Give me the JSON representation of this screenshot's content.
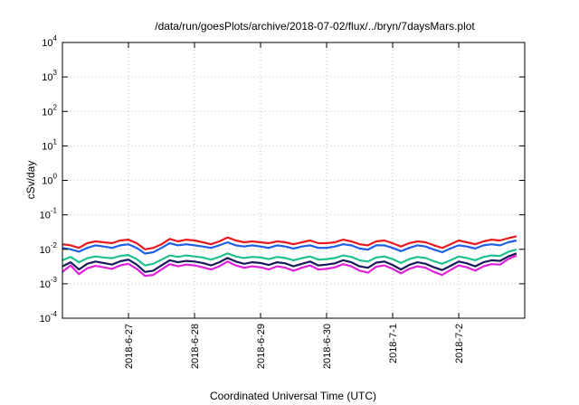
{
  "chart_data": {
    "type": "line",
    "title": "/data/run/goesPlots/archive/2018-07-02/flux/../bryn/7daysMars.plot",
    "xlabel": "Coordinated Universal Time (UTC)",
    "ylabel": "cSv/day",
    "yscale": "log",
    "ylim": [
      0.0001,
      10000
    ],
    "y_ticks": [
      {
        "base": "10",
        "exp": "-4"
      },
      {
        "base": "10",
        "exp": "-3"
      },
      {
        "base": "10",
        "exp": "-2"
      },
      {
        "base": "10",
        "exp": "-1"
      },
      {
        "base": "10",
        "exp": "0"
      },
      {
        "base": "10",
        "exp": "1"
      },
      {
        "base": "10",
        "exp": "2"
      },
      {
        "base": "10",
        "exp": "3"
      },
      {
        "base": "10",
        "exp": "4"
      }
    ],
    "xlim": [
      "2018-06-26 00:00",
      "2018-07-02 23:59"
    ],
    "x_ticks": [
      "2018-6-27",
      "2018-6-28",
      "2018-6-29",
      "2018-6-30",
      "2018-7-1",
      "2018-7-2"
    ],
    "grid": true,
    "x": [
      "2018-06-26 00:00",
      "2018-06-26 03:00",
      "2018-06-26 06:00",
      "2018-06-26 09:00",
      "2018-06-26 12:00",
      "2018-06-26 15:00",
      "2018-06-26 18:00",
      "2018-06-26 21:00",
      "2018-06-27 00:00",
      "2018-06-27 03:00",
      "2018-06-27 06:00",
      "2018-06-27 09:00",
      "2018-06-27 12:00",
      "2018-06-27 15:00",
      "2018-06-27 18:00",
      "2018-06-27 21:00",
      "2018-06-28 00:00",
      "2018-06-28 03:00",
      "2018-06-28 06:00",
      "2018-06-28 09:00",
      "2018-06-28 12:00",
      "2018-06-28 15:00",
      "2018-06-28 18:00",
      "2018-06-28 21:00",
      "2018-06-29 00:00",
      "2018-06-29 03:00",
      "2018-06-29 06:00",
      "2018-06-29 09:00",
      "2018-06-29 12:00",
      "2018-06-29 15:00",
      "2018-06-29 18:00",
      "2018-06-29 21:00",
      "2018-06-30 00:00",
      "2018-06-30 03:00",
      "2018-06-30 06:00",
      "2018-06-30 09:00",
      "2018-06-30 12:00",
      "2018-06-30 15:00",
      "2018-06-30 18:00",
      "2018-06-30 21:00",
      "2018-07-01 00:00",
      "2018-07-01 03:00",
      "2018-07-01 06:00",
      "2018-07-01 09:00",
      "2018-07-01 12:00",
      "2018-07-01 15:00",
      "2018-07-01 18:00",
      "2018-07-01 21:00",
      "2018-07-02 00:00",
      "2018-07-02 03:00",
      "2018-07-02 06:00",
      "2018-07-02 09:00",
      "2018-07-02 12:00",
      "2018-07-02 15:00",
      "2018-07-02 18:00",
      "2018-07-02 21:00"
    ],
    "series": [
      {
        "color": "#e8191f",
        "values": [
          0.014,
          0.013,
          0.011,
          0.015,
          0.017,
          0.016,
          0.015,
          0.018,
          0.019,
          0.015,
          0.01,
          0.011,
          0.014,
          0.02,
          0.017,
          0.019,
          0.018,
          0.016,
          0.014,
          0.017,
          0.022,
          0.018,
          0.016,
          0.017,
          0.016,
          0.015,
          0.017,
          0.016,
          0.014,
          0.016,
          0.018,
          0.015,
          0.015,
          0.016,
          0.019,
          0.017,
          0.014,
          0.013,
          0.017,
          0.018,
          0.015,
          0.012,
          0.015,
          0.017,
          0.016,
          0.013,
          0.011,
          0.014,
          0.018,
          0.016,
          0.014,
          0.017,
          0.019,
          0.018,
          0.021,
          0.024
        ]
      },
      {
        "color": "#1f5fe8",
        "values": [
          0.011,
          0.01,
          0.0085,
          0.011,
          0.013,
          0.012,
          0.011,
          0.013,
          0.014,
          0.011,
          0.0075,
          0.0082,
          0.011,
          0.015,
          0.013,
          0.014,
          0.013,
          0.012,
          0.011,
          0.013,
          0.016,
          0.013,
          0.012,
          0.013,
          0.012,
          0.011,
          0.013,
          0.012,
          0.0105,
          0.012,
          0.013,
          0.011,
          0.011,
          0.012,
          0.014,
          0.013,
          0.0105,
          0.0098,
          0.013,
          0.013,
          0.011,
          0.0088,
          0.011,
          0.013,
          0.012,
          0.0098,
          0.0082,
          0.0105,
          0.013,
          0.012,
          0.0105,
          0.013,
          0.014,
          0.013,
          0.016,
          0.018
        ]
      },
      {
        "color": "#20c090",
        "values": [
          0.0048,
          0.006,
          0.0042,
          0.0055,
          0.0062,
          0.0058,
          0.0055,
          0.0064,
          0.0068,
          0.0052,
          0.0034,
          0.0038,
          0.005,
          0.0066,
          0.006,
          0.0066,
          0.0062,
          0.0058,
          0.005,
          0.006,
          0.0076,
          0.0062,
          0.0056,
          0.006,
          0.0058,
          0.0052,
          0.006,
          0.0056,
          0.0048,
          0.0055,
          0.0062,
          0.005,
          0.0052,
          0.0056,
          0.0066,
          0.006,
          0.0048,
          0.0044,
          0.0058,
          0.0062,
          0.0052,
          0.004,
          0.0052,
          0.006,
          0.0056,
          0.0045,
          0.0038,
          0.0048,
          0.0062,
          0.0056,
          0.0048,
          0.006,
          0.0066,
          0.0064,
          0.0084,
          0.0098
        ]
      },
      {
        "color": "#1a1a5a",
        "values": [
          0.0032,
          0.0042,
          0.0026,
          0.0038,
          0.0044,
          0.004,
          0.0036,
          0.0045,
          0.005,
          0.0036,
          0.0022,
          0.0024,
          0.0034,
          0.0048,
          0.0042,
          0.0046,
          0.0044,
          0.004,
          0.0034,
          0.0042,
          0.0056,
          0.0044,
          0.0038,
          0.0042,
          0.004,
          0.0035,
          0.0042,
          0.0039,
          0.0032,
          0.0038,
          0.0044,
          0.0034,
          0.0036,
          0.0039,
          0.0048,
          0.0042,
          0.0032,
          0.0029,
          0.0041,
          0.0044,
          0.0035,
          0.0026,
          0.0035,
          0.0042,
          0.0038,
          0.003,
          0.0025,
          0.0033,
          0.0044,
          0.0039,
          0.0032,
          0.0042,
          0.0048,
          0.0046,
          0.0062,
          0.0076
        ]
      },
      {
        "color": "#e020d8",
        "values": [
          0.0022,
          0.0034,
          0.0019,
          0.0028,
          0.0033,
          0.003,
          0.0027,
          0.0034,
          0.0038,
          0.0027,
          0.0017,
          0.0018,
          0.0026,
          0.0037,
          0.0032,
          0.0036,
          0.0034,
          0.003,
          0.0026,
          0.0032,
          0.0044,
          0.0034,
          0.0029,
          0.0032,
          0.003,
          0.0026,
          0.0032,
          0.0029,
          0.0024,
          0.0029,
          0.0034,
          0.0026,
          0.0027,
          0.003,
          0.0037,
          0.0032,
          0.0024,
          0.0021,
          0.0031,
          0.0034,
          0.0027,
          0.002,
          0.0027,
          0.0032,
          0.0029,
          0.0022,
          0.0018,
          0.0025,
          0.0034,
          0.003,
          0.0024,
          0.0032,
          0.0037,
          0.0036,
          0.0052,
          0.0066
        ]
      }
    ]
  }
}
